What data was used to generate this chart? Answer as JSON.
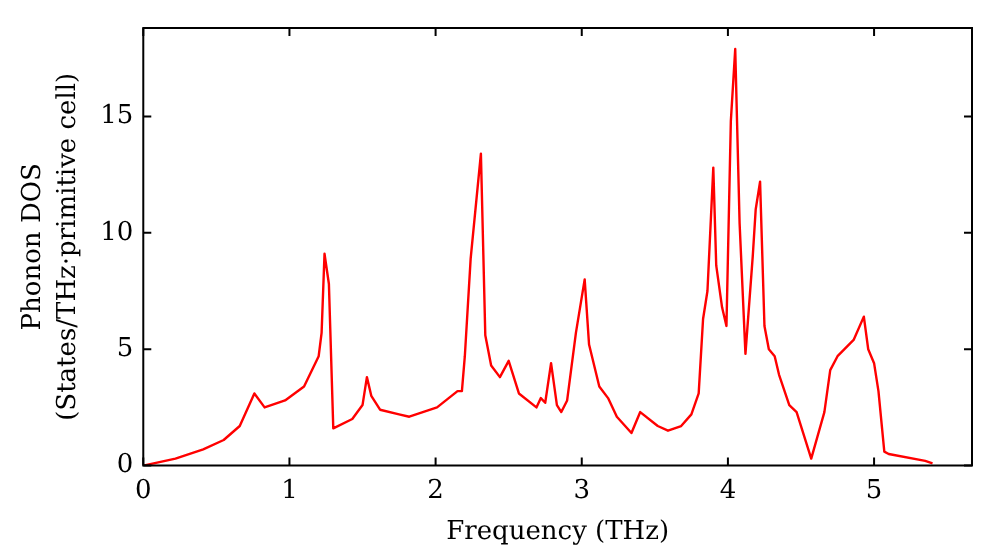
{
  "chart_data": {
    "type": "line",
    "xlabel": "Frequency (THz)",
    "ylabel": "Phonon DOS\n(States/THz·primitive cell)",
    "xlim": [
      0,
      5.67
    ],
    "xticks": [
      0,
      1,
      2,
      3,
      4,
      5
    ],
    "ylim": [
      0,
      18.8
    ],
    "yticks": [
      0,
      5,
      10,
      15
    ],
    "grid": false,
    "legend": false,
    "marker": "none",
    "line_style": "solid",
    "series": [
      {
        "color": "#ff0000",
        "x": [
          0,
          0.22,
          0.41,
          0.55,
          0.66,
          0.76,
          0.83,
          0.97,
          1.1,
          1.2,
          1.22,
          1.24,
          1.27,
          1.3,
          1.43,
          1.5,
          1.53,
          1.56,
          1.62,
          1.75,
          1.82,
          2.01,
          2.15,
          2.18,
          2.2,
          2.24,
          2.31,
          2.34,
          2.38,
          2.44,
          2.5,
          2.57,
          2.69,
          2.72,
          2.75,
          2.79,
          2.83,
          2.86,
          2.9,
          2.96,
          3.02,
          3.05,
          3.12,
          3.18,
          3.24,
          3.34,
          3.4,
          3.52,
          3.59,
          3.68,
          3.75,
          3.8,
          3.83,
          3.86,
          3.9,
          3.92,
          3.96,
          3.99,
          4.02,
          4.05,
          4.08,
          4.12,
          4.17,
          4.19,
          4.22,
          4.25,
          4.28,
          4.32,
          4.35,
          4.42,
          4.47,
          4.57,
          4.66,
          4.7,
          4.75,
          4.86,
          4.93,
          4.96,
          5.0,
          5.03,
          5.07,
          5.1,
          5.35,
          5.4
        ],
        "values": [
          0,
          0.3,
          0.7,
          1.1,
          1.7,
          3.1,
          2.5,
          2.8,
          3.4,
          4.7,
          5.7,
          9.1,
          7.8,
          1.6,
          2.0,
          2.6,
          3.8,
          3.0,
          2.4,
          2.2,
          2.1,
          2.5,
          3.2,
          3.2,
          4.7,
          8.9,
          13.4,
          5.6,
          4.3,
          3.8,
          4.5,
          3.1,
          2.5,
          2.9,
          2.7,
          4.4,
          2.6,
          2.3,
          2.8,
          5.7,
          8.0,
          5.2,
          3.4,
          2.9,
          2.1,
          1.4,
          2.3,
          1.7,
          1.5,
          1.7,
          2.2,
          3.1,
          6.3,
          7.5,
          12.8,
          8.6,
          6.8,
          6.0,
          14.8,
          17.9,
          10.4,
          4.8,
          9.0,
          11.0,
          12.2,
          6.0,
          5.0,
          4.7,
          3.9,
          2.6,
          2.3,
          0.3,
          2.3,
          4.1,
          4.7,
          5.4,
          6.4,
          5.0,
          4.4,
          3.2,
          0.6,
          0.5,
          0.2,
          0.1
        ]
      }
    ]
  }
}
